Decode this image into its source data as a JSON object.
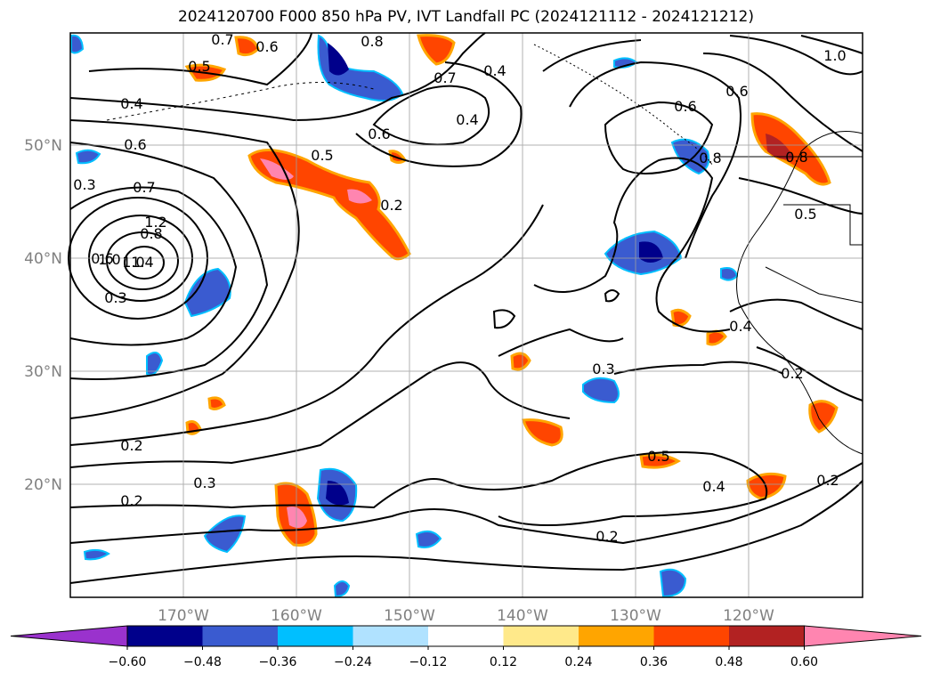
{
  "title": "2024120700 F000 850 hPa PV, IVT Landfall PC (2024121112 - 2024121212)",
  "map": {
    "lon_ticks": [
      "170°W",
      "160°W",
      "150°W",
      "140°W",
      "130°W",
      "120°W"
    ],
    "lat_ticks": [
      "50°N",
      "40°N",
      "30°N",
      "20°N"
    ],
    "contour_labels": [
      "0.7",
      "0.6",
      "0.5",
      "0.4",
      "0.6",
      "0.7",
      "0.8",
      "1.0",
      "1.2",
      "1.4",
      "1.0",
      "0.3",
      "0.2",
      "0.2",
      "0.3",
      "0.2",
      "0.4",
      "0.8",
      "0.7",
      "0.4",
      "0.5",
      "0.6",
      "1.0",
      "0.8",
      "0.6",
      "0.5",
      "0.6",
      "0.4",
      "0.3",
      "0.2",
      "0.2",
      "0.5",
      "0.4",
      "0.2",
      "0.3",
      "0.8",
      "0.6"
    ]
  },
  "colorbar": {
    "ticks": [
      "−0.60",
      "−0.48",
      "−0.36",
      "−0.24",
      "−0.12",
      "0.12",
      "0.24",
      "0.36",
      "0.48",
      "0.60"
    ],
    "colors": [
      "#9a32cd",
      "#00008b",
      "#3a5bd0",
      "#00bfff",
      "#b0e2ff",
      "#ffffff",
      "#ffe98a",
      "#ffa500",
      "#ff4500",
      "#b22222",
      "#ff85b0"
    ]
  }
}
